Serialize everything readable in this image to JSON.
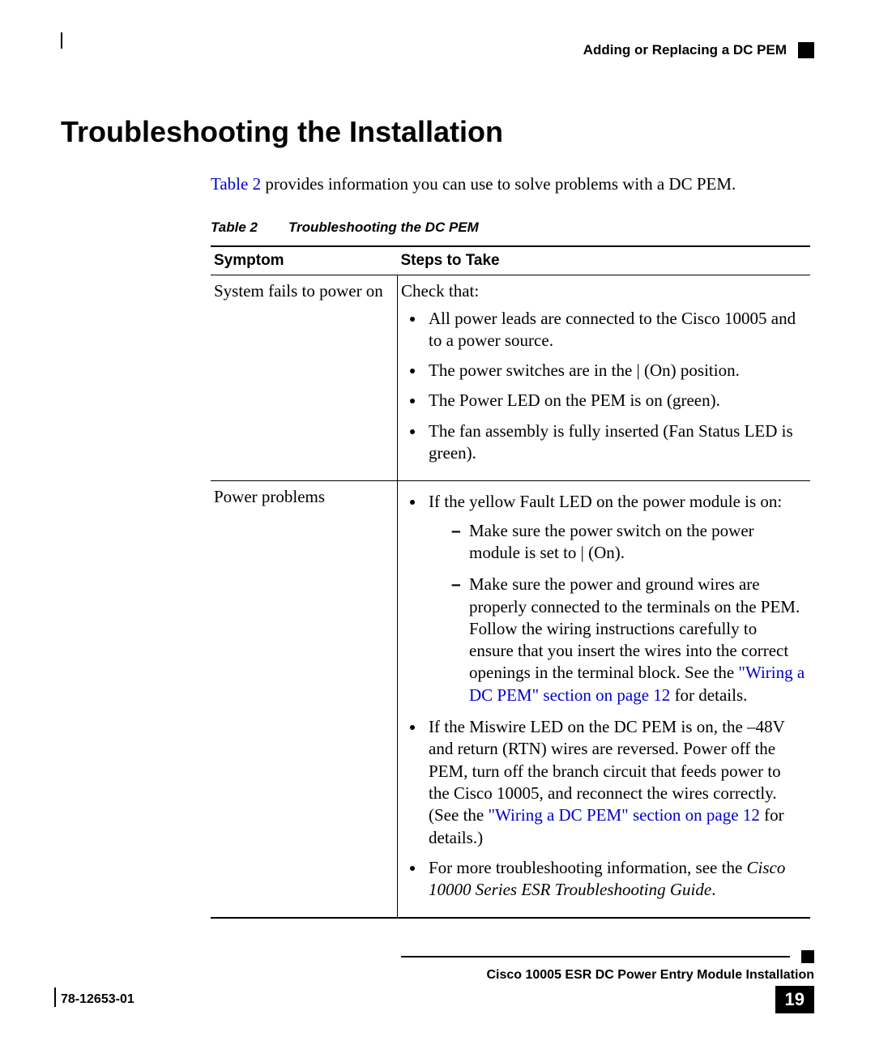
{
  "header": {
    "section_title": "Adding or Replacing a DC PEM"
  },
  "heading": "Troubleshooting the Installation",
  "intro": {
    "link_text": "Table 2",
    "rest": " provides information you can use to solve problems with a DC PEM."
  },
  "table": {
    "caption_label": "Table 2",
    "caption_title": "Troubleshooting the DC PEM",
    "columns": [
      "Symptom",
      "Steps to Take"
    ],
    "rows": [
      {
        "symptom": "System fails to power on",
        "lead": "Check that:",
        "bullets": [
          "All power leads are connected to the Cisco 10005 and to a power source.",
          "The power switches are in the | (On) position.",
          "The Power LED on the PEM is on (green).",
          "The fan assembly is fully inserted (Fan Status LED is green)."
        ]
      },
      {
        "symptom": "Power problems",
        "sections": {
          "b1_lead": "If the yellow Fault LED on the power module is on:",
          "b2_items": [
            "Make sure the power switch on the power module is set to | (On).",
            {
              "pre": "Make sure the power and ground wires are properly connected to the terminals on the PEM. Follow the wiring instructions carefully to ensure that you insert the wires into the correct openings in the terminal block. See the ",
              "link": "\"Wiring a DC PEM\" section on page 12",
              "post": " for details."
            }
          ],
          "miswire": {
            "pre": "If the Miswire LED on the DC PEM is on, the –48V and return (RTN) wires are reversed. Power off the PEM, turn off the branch circuit that feeds power to the Cisco 10005, and reconnect the wires correctly. (See the ",
            "link": "\"Wiring a DC PEM\" section on page 12",
            "post": " for details.)"
          },
          "more": {
            "pre": "For more troubleshooting information, see the ",
            "italic": "Cisco 10000 Series ESR Troubleshooting Guide",
            "post": "."
          }
        }
      }
    ]
  },
  "footer": {
    "doc_title": "Cisco 10005 ESR DC Power Entry Module Installation",
    "doc_number": "78-12653-01",
    "page_number": "19"
  },
  "colors": {
    "link": "#0000cc",
    "text": "#000000",
    "background": "#ffffff"
  }
}
